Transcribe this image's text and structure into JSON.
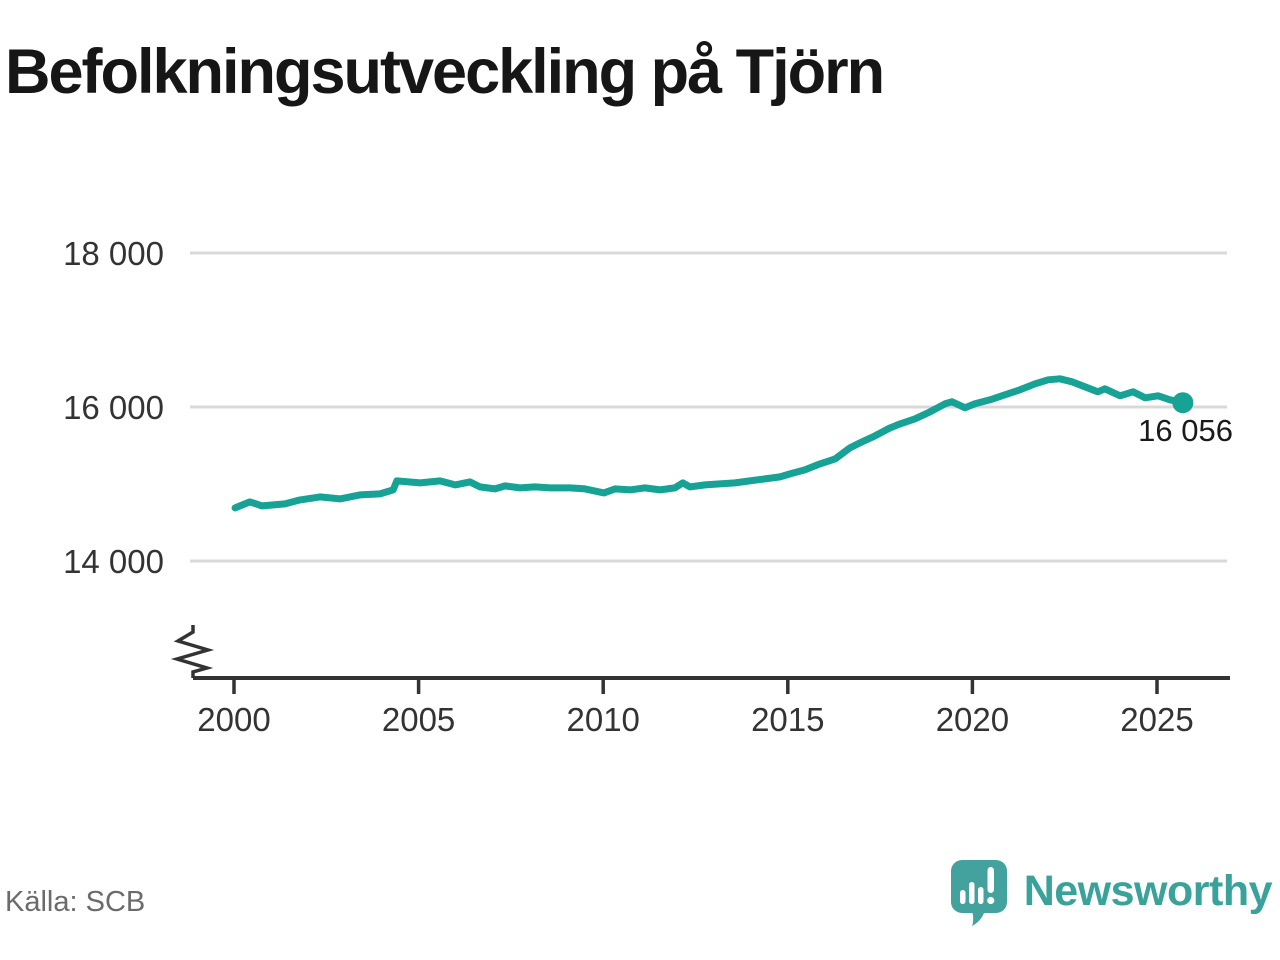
{
  "chart_data": {
    "type": "line",
    "title": "Befolkningsutveckling på Tjörn",
    "source": "Källa: SCB",
    "brand": "Newsworthy",
    "end_label": "16 056",
    "end_value": 16056,
    "colors": {
      "line": "#16A294",
      "grid": "#d9d9d9",
      "axis": "#333333",
      "tick_text": "#333333",
      "annotation_text": "#1a1a1a",
      "logo": "#43A29E",
      "wordmark": "#38a29b"
    },
    "x_axis": {
      "label": "",
      "range": [
        1999.0,
        2027.0
      ],
      "ticks": [
        {
          "value": 2000,
          "label": "2000"
        },
        {
          "value": 2005,
          "label": "2005"
        },
        {
          "value": 2010,
          "label": "2010"
        },
        {
          "value": 2015,
          "label": "2015"
        },
        {
          "value": 2020,
          "label": "2020"
        },
        {
          "value": 2025,
          "label": "2025"
        }
      ],
      "axis_break": true
    },
    "y_axis": {
      "label": "",
      "range": [
        14000,
        18000
      ],
      "ticks": [
        {
          "value": 18000,
          "label": "18 000"
        },
        {
          "value": 16000,
          "label": "16 000"
        },
        {
          "value": 14000,
          "label": "14 000"
        }
      ],
      "grid": true
    },
    "series": [
      {
        "name": "Befolkning",
        "points": [
          [
            2000.03,
            14690
          ],
          [
            2000.43,
            14767
          ],
          [
            2000.76,
            14715
          ],
          [
            2001.38,
            14741
          ],
          [
            2001.79,
            14793
          ],
          [
            2002.33,
            14832
          ],
          [
            2002.87,
            14806
          ],
          [
            2003.41,
            14858
          ],
          [
            2003.95,
            14871
          ],
          [
            2004.31,
            14923
          ],
          [
            2004.41,
            15040
          ],
          [
            2005.04,
            15014
          ],
          [
            2005.58,
            15040
          ],
          [
            2005.99,
            14988
          ],
          [
            2006.39,
            15027
          ],
          [
            2006.66,
            14962
          ],
          [
            2007.07,
            14936
          ],
          [
            2007.34,
            14975
          ],
          [
            2007.75,
            14949
          ],
          [
            2008.15,
            14962
          ],
          [
            2008.56,
            14949
          ],
          [
            2009.1,
            14949
          ],
          [
            2009.51,
            14936
          ],
          [
            2010.02,
            14884
          ],
          [
            2010.32,
            14936
          ],
          [
            2010.73,
            14923
          ],
          [
            2011.13,
            14949
          ],
          [
            2011.54,
            14923
          ],
          [
            2011.94,
            14949
          ],
          [
            2012.16,
            15014
          ],
          [
            2012.35,
            14962
          ],
          [
            2012.76,
            14988
          ],
          [
            2013.16,
            15001
          ],
          [
            2013.57,
            15014
          ],
          [
            2013.97,
            15040
          ],
          [
            2014.38,
            15066
          ],
          [
            2014.79,
            15092
          ],
          [
            2015.06,
            15131
          ],
          [
            2015.46,
            15183
          ],
          [
            2015.87,
            15261
          ],
          [
            2016.28,
            15326
          ],
          [
            2016.68,
            15469
          ],
          [
            2017.01,
            15547
          ],
          [
            2017.36,
            15625
          ],
          [
            2017.77,
            15729
          ],
          [
            2018.04,
            15781
          ],
          [
            2018.44,
            15846
          ],
          [
            2018.85,
            15937
          ],
          [
            2019.26,
            16041
          ],
          [
            2019.45,
            16067
          ],
          [
            2019.8,
            15989
          ],
          [
            2020.07,
            16041
          ],
          [
            2020.48,
            16093
          ],
          [
            2020.88,
            16158
          ],
          [
            2021.29,
            16223
          ],
          [
            2021.7,
            16301
          ],
          [
            2022.05,
            16353
          ],
          [
            2022.37,
            16366
          ],
          [
            2022.7,
            16327
          ],
          [
            2023.05,
            16262
          ],
          [
            2023.4,
            16197
          ],
          [
            2023.59,
            16236
          ],
          [
            2024.0,
            16145
          ],
          [
            2024.35,
            16197
          ],
          [
            2024.68,
            16119
          ],
          [
            2025.03,
            16145
          ],
          [
            2025.35,
            16093
          ],
          [
            2025.7,
            16056
          ]
        ]
      }
    ]
  }
}
